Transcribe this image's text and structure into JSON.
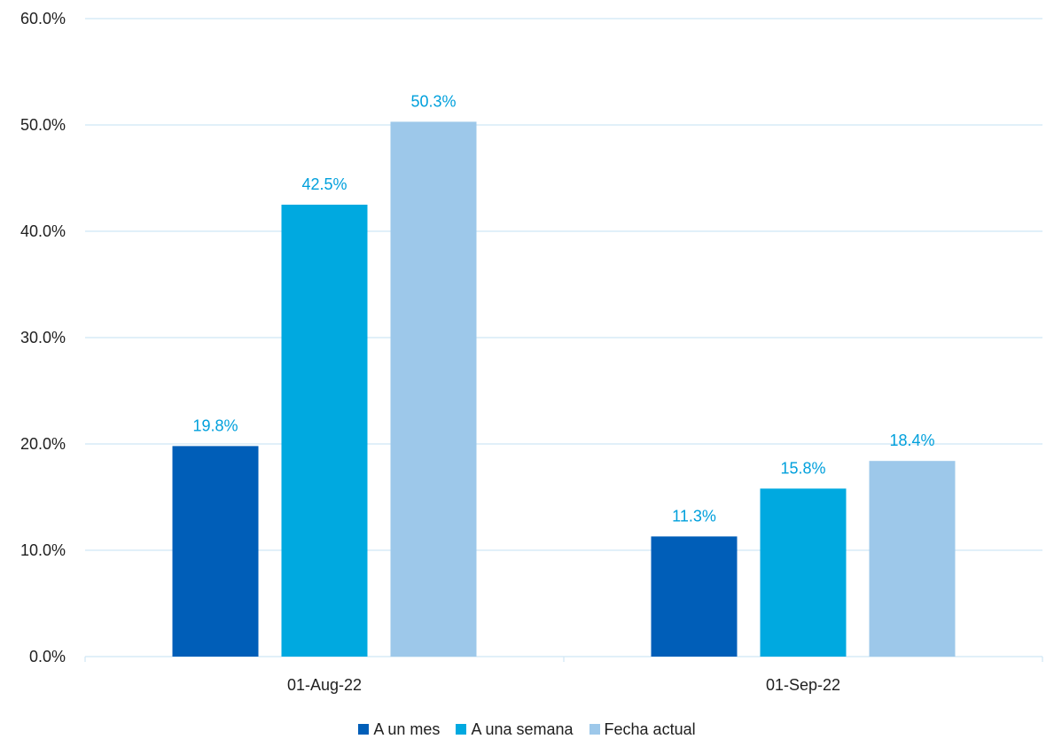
{
  "chart_data": {
    "type": "bar",
    "categories": [
      "01-Aug-22",
      "01-Sep-22"
    ],
    "series": [
      {
        "name": "A un mes",
        "values": [
          19.8,
          11.3
        ],
        "color": "#005EB8",
        "labels": [
          "19.8%",
          "11.3%"
        ]
      },
      {
        "name": "A una semana",
        "values": [
          42.5,
          15.8
        ],
        "color": "#00A9E0",
        "labels": [
          "42.5%",
          "15.8%"
        ]
      },
      {
        "name": "Fecha actual",
        "values": [
          50.3,
          18.4
        ],
        "color": "#9DC8EA",
        "labels": [
          "50.3%",
          "18.4%"
        ]
      }
    ],
    "ylim": [
      0,
      60
    ],
    "yticks": [
      0,
      10,
      20,
      30,
      40,
      50,
      60
    ],
    "ytick_labels": [
      "0.0%",
      "10.0%",
      "20.0%",
      "30.0%",
      "40.0%",
      "50.0%",
      "60.0%"
    ],
    "grid": true,
    "legend": "bottom-center",
    "gridline_color": "#CFE6F5",
    "label_color": "#00A0DC"
  }
}
